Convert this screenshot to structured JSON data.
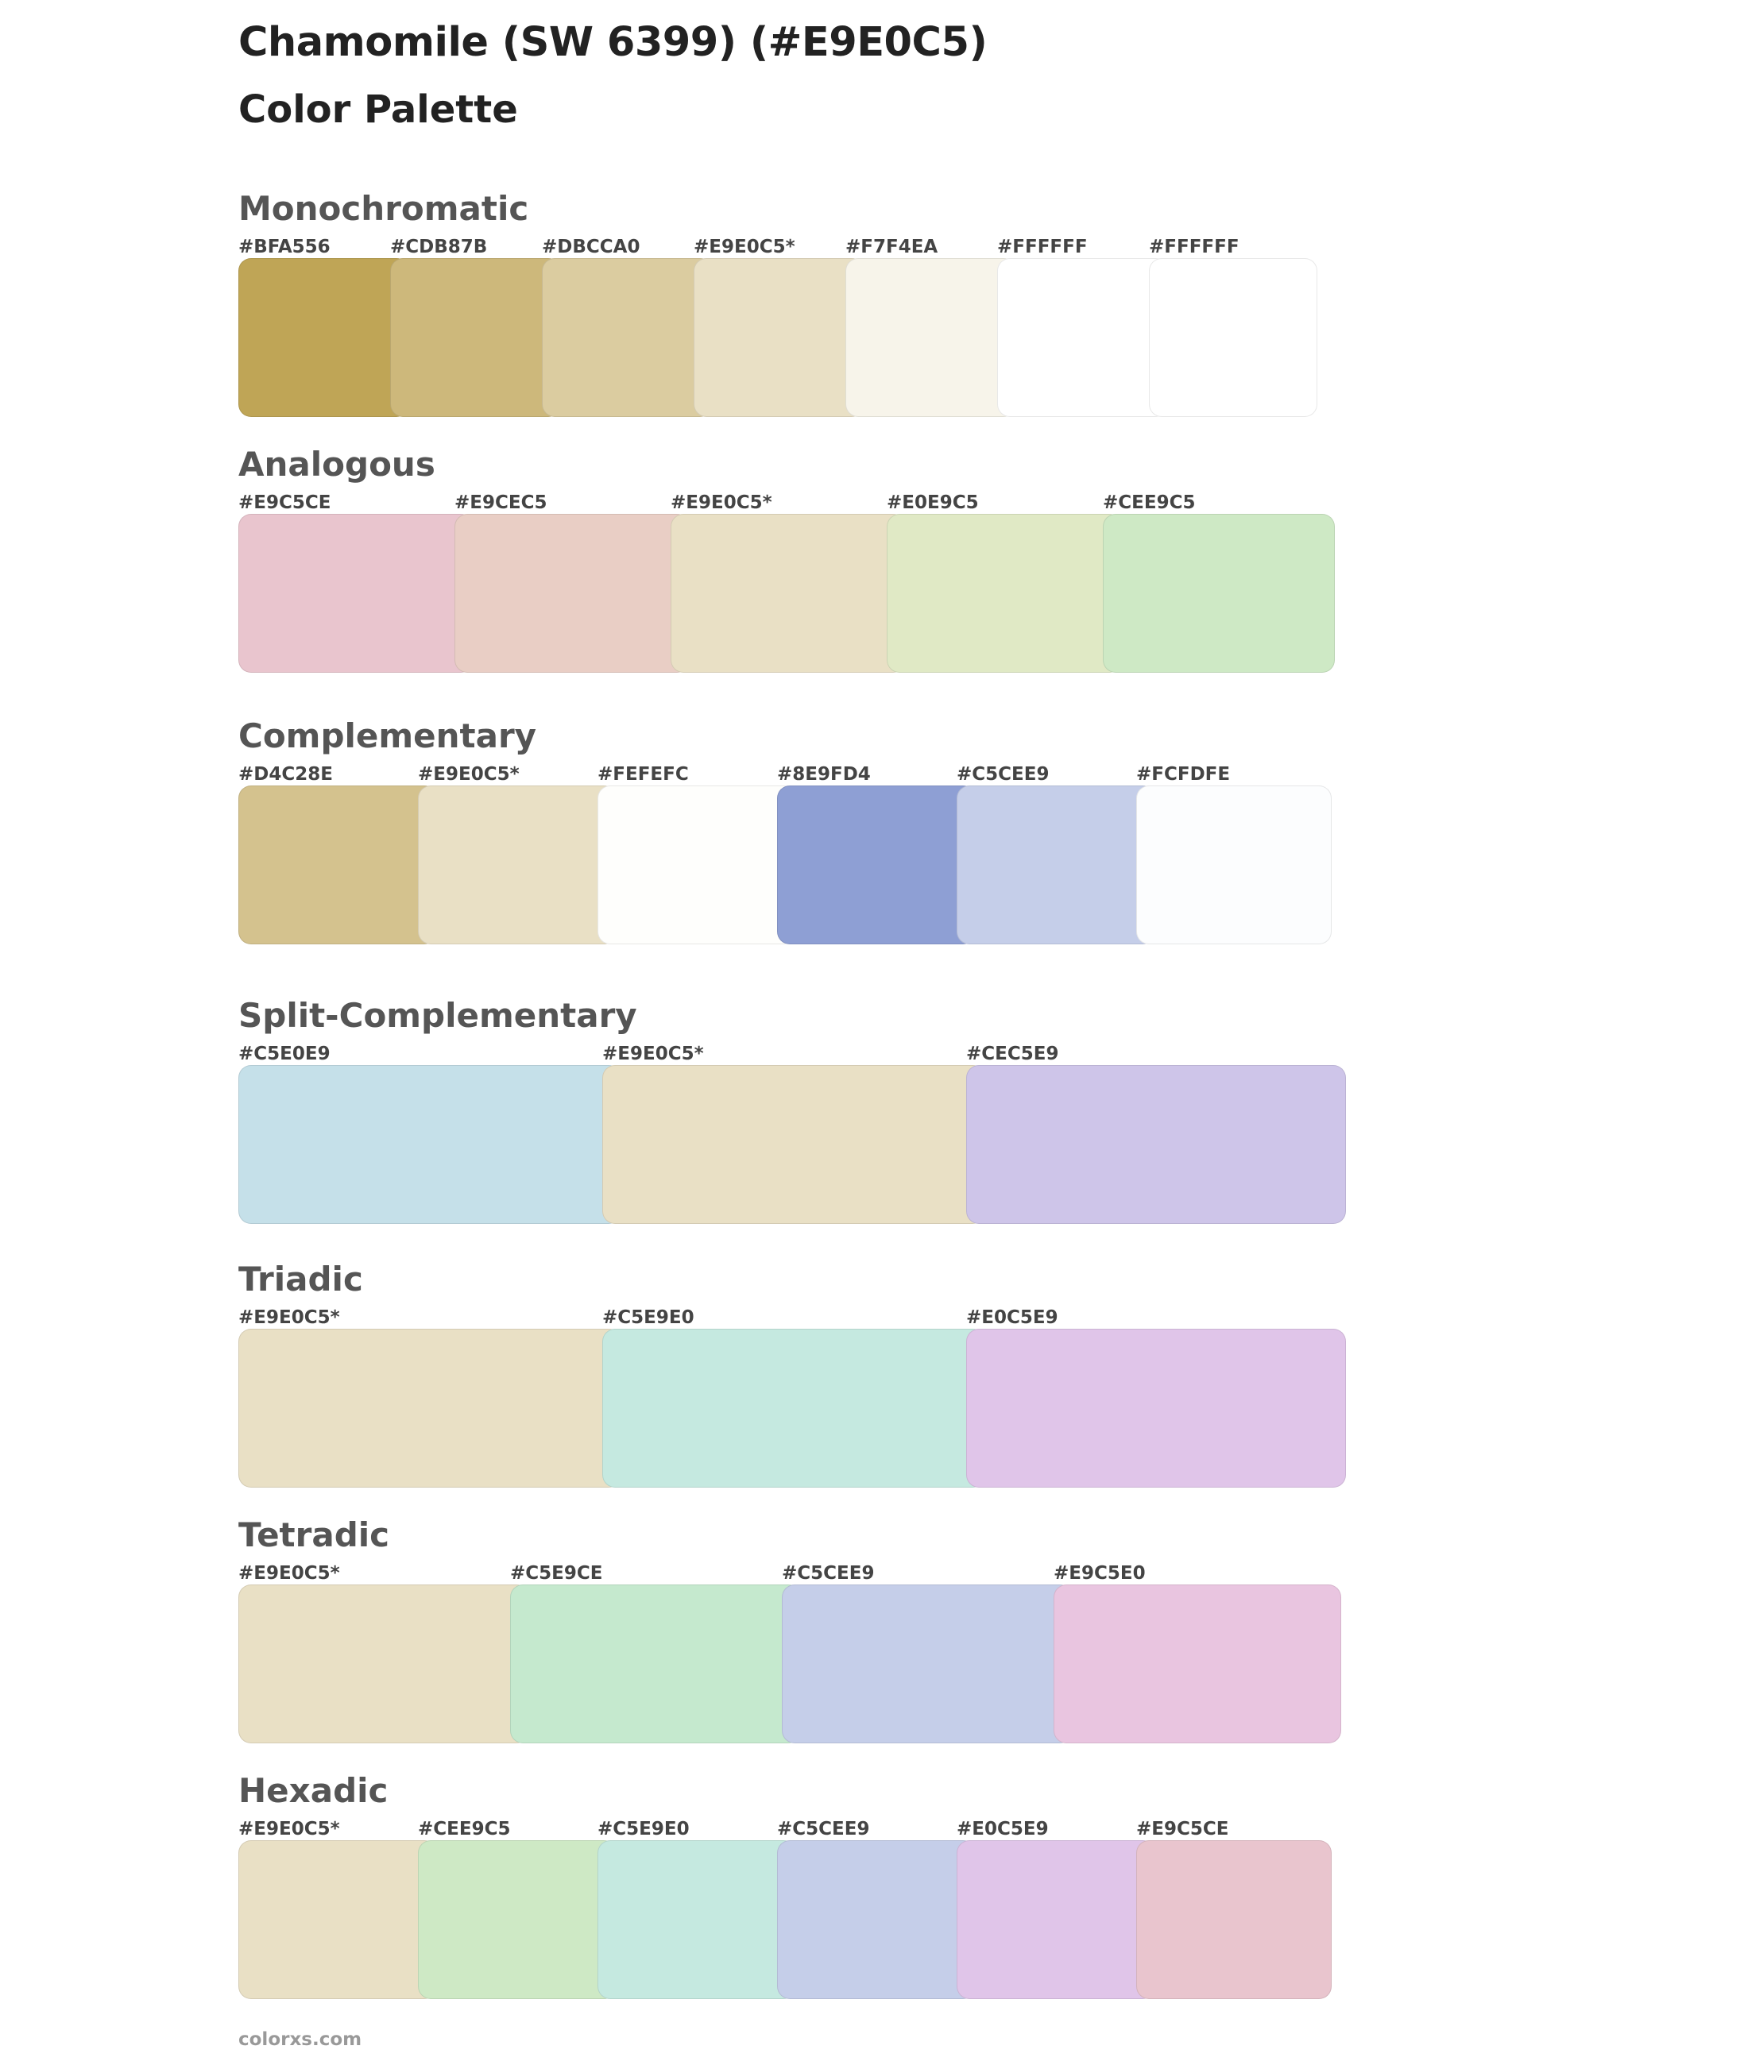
{
  "title": "Chamomile (SW 6399) (#E9E0C5)",
  "subtitle": "Color Palette",
  "footer": "colorxs.com",
  "palettes": [
    {
      "name": "Monochromatic",
      "swatches": [
        {
          "label": "#BFA556",
          "color": "#BFA556"
        },
        {
          "label": "#CDB87B",
          "color": "#CDB87B"
        },
        {
          "label": "#DBCCA0",
          "color": "#DBCCA0"
        },
        {
          "label": "#E9E0C5*",
          "color": "#E9E0C5"
        },
        {
          "label": "#F7F4EA",
          "color": "#F7F4EA"
        },
        {
          "label": "#FFFFFF",
          "color": "#FFFFFF"
        },
        {
          "label": "#FFFFFF",
          "color": "#FFFFFF"
        }
      ]
    },
    {
      "name": "Analogous",
      "swatches": [
        {
          "label": "#E9C5CE",
          "color": "#E9C5CE"
        },
        {
          "label": "#E9CEC5",
          "color": "#E9CEC5"
        },
        {
          "label": "#E9E0C5*",
          "color": "#E9E0C5"
        },
        {
          "label": "#E0E9C5",
          "color": "#E0E9C5"
        },
        {
          "label": "#CEE9C5",
          "color": "#CEE9C5"
        }
      ]
    },
    {
      "name": "Complementary",
      "swatches": [
        {
          "label": "#D4C28E",
          "color": "#D4C28E"
        },
        {
          "label": "#E9E0C5*",
          "color": "#E9E0C5"
        },
        {
          "label": "#FEFEFC",
          "color": "#FEFEFC"
        },
        {
          "label": "#8E9FD4",
          "color": "#8E9FD4"
        },
        {
          "label": "#C5CEE9",
          "color": "#C5CEE9"
        },
        {
          "label": "#FCFDFE",
          "color": "#FCFDFE"
        }
      ]
    },
    {
      "name": "Split-Complementary",
      "swatches": [
        {
          "label": "#C5E0E9",
          "color": "#C5E0E9"
        },
        {
          "label": "#E9E0C5*",
          "color": "#E9E0C5"
        },
        {
          "label": "#CEC5E9",
          "color": "#CEC5E9"
        }
      ]
    },
    {
      "name": "Triadic",
      "swatches": [
        {
          "label": "#E9E0C5*",
          "color": "#E9E0C5"
        },
        {
          "label": "#C5E9E0",
          "color": "#C5E9E0"
        },
        {
          "label": "#E0C5E9",
          "color": "#E0C5E9"
        }
      ]
    },
    {
      "name": "Tetradic",
      "swatches": [
        {
          "label": "#E9E0C5*",
          "color": "#E9E0C5"
        },
        {
          "label": "#C5E9CE",
          "color": "#C5E9CE"
        },
        {
          "label": "#C5CEE9",
          "color": "#C5CEE9"
        },
        {
          "label": "#E9C5E0",
          "color": "#E9C5E0"
        }
      ]
    },
    {
      "name": "Hexadic",
      "swatches": [
        {
          "label": "#E9E0C5*",
          "color": "#E9E0C5"
        },
        {
          "label": "#CEE9C5",
          "color": "#CEE9C5"
        },
        {
          "label": "#C5E9E0",
          "color": "#C5E9E0"
        },
        {
          "label": "#C5CEE9",
          "color": "#C5CEE9"
        },
        {
          "label": "#E0C5E9",
          "color": "#E0C5E9"
        },
        {
          "label": "#E9C5CE",
          "color": "#E9C5CE"
        }
      ]
    }
  ]
}
